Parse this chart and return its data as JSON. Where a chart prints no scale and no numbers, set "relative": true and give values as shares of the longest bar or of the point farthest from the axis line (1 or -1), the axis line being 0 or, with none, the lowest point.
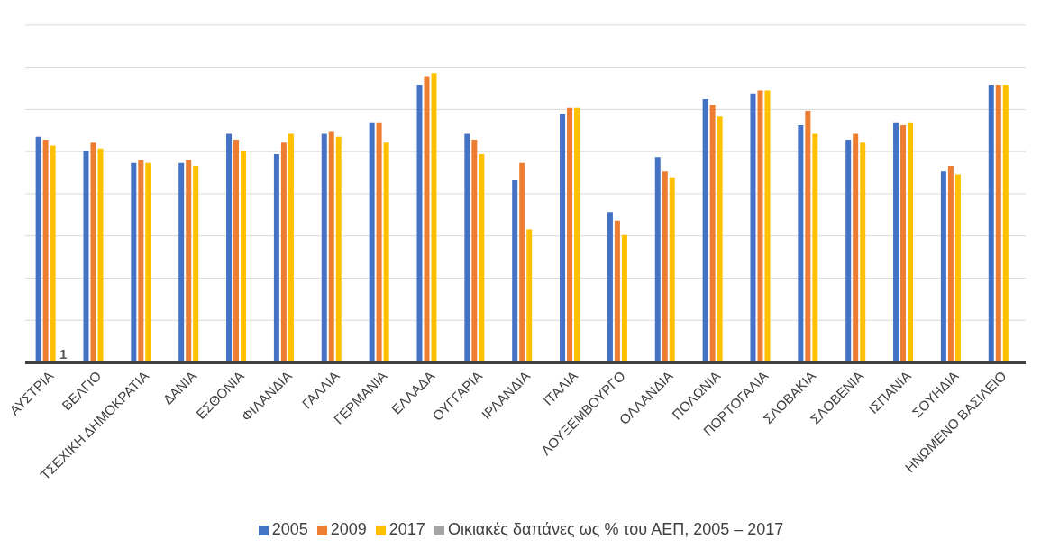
{
  "chart_data": {
    "type": "bar",
    "relative": true,
    "grid": true,
    "legend": "bottom",
    "categories": [
      "ΑΥΣΤΡΙΑ",
      "ΒΕΛΓΙΟ",
      "ΤΣΕΧΙΚΗ ΔΗΜΟΚΡΑΤΙΑ",
      "ΔΑΝΙΑ",
      "ΕΣΘΟΝΙΑ",
      "ΦΙΛΑΝΔΙΑ",
      "ΓΑΛΛΙΑ",
      "ΓΕΡΜΑΝΙΑ",
      "ΕΛΛΑΔΑ",
      "ΟΥΓΓΑΡΙΑ",
      "ΙΡΛΑΝΔΙΑ",
      "ΙΤΑΛΙΑ",
      "ΛΟΥΞΕΜΒΟΥΡΓΟ",
      "ΟΛΛΑΝΔΙΑ",
      "ΠΟΛΩΝΙΑ",
      "ΠΟΡΤΟΓΑΛΙΑ",
      "ΣΛΟΒΑΚΙΑ",
      "ΣΛΟΒΕΝΙΑ",
      "ΙΣΠΑΝΙΑ",
      "ΣΟΥΗΔΙΑ",
      "ΗΝΩΜΕΝΟ ΒΑΣΙΛΕΙΟ"
    ],
    "series": [
      {
        "name": "2005",
        "color": "#4472c4",
        "values": [
          0.78,
          0.73,
          0.69,
          0.69,
          0.79,
          0.72,
          0.79,
          0.83,
          0.96,
          0.79,
          0.63,
          0.86,
          0.52,
          0.71,
          0.91,
          0.93,
          0.82,
          0.77,
          0.83,
          0.66,
          0.96
        ]
      },
      {
        "name": "2009",
        "color": "#ed7d31",
        "values": [
          0.77,
          0.76,
          0.7,
          0.7,
          0.77,
          0.76,
          0.8,
          0.83,
          0.99,
          0.77,
          0.69,
          0.88,
          0.49,
          0.66,
          0.89,
          0.94,
          0.87,
          0.79,
          0.82,
          0.68,
          0.96
        ]
      },
      {
        "name": "2017",
        "color": "#ffc000",
        "values": [
          0.75,
          0.74,
          0.69,
          0.68,
          0.73,
          0.79,
          0.78,
          0.76,
          1,
          0.72,
          0.46,
          0.88,
          0.44,
          0.64,
          0.85,
          0.94,
          0.79,
          0.76,
          0.83,
          0.65,
          0.96
        ]
      },
      {
        "name": "Οικιακές δαπάνες ως % του ΑΕΠ, 2005 – 2017",
        "color": "#a5a5a5",
        "values": [
          null,
          null,
          null,
          null,
          null,
          null,
          null,
          null,
          null,
          null,
          null,
          null,
          null,
          null,
          null,
          null,
          null,
          null,
          null,
          null,
          null
        ]
      }
    ],
    "annotations": [
      "1"
    ]
  }
}
